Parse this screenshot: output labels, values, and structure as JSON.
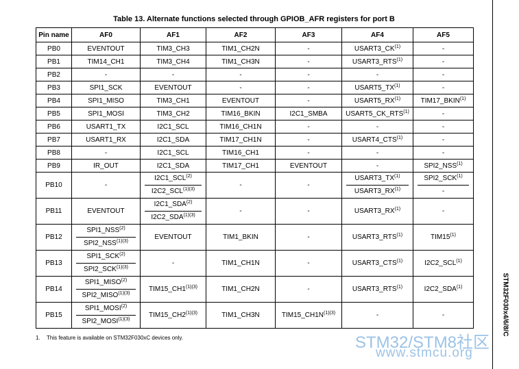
{
  "title": "Table 13. Alternate functions selected through GPIOB_AFR registers for port B",
  "table": {
    "header": [
      "Pin name",
      "AF0",
      "AF1",
      "AF2",
      "AF3",
      "AF4",
      "AF5"
    ],
    "rows": [
      [
        "PB0",
        "EVENTOUT",
        "TIM3_CH3",
        "TIM1_CH2N",
        "-",
        {
          "text": "USART3_CK",
          "sup": "(1)"
        },
        "-"
      ],
      [
        "PB1",
        "TIM14_CH1",
        "TIM3_CH4",
        "TIM1_CH3N",
        "-",
        {
          "text": "USART3_RTS",
          "sup": "(1)"
        },
        "-"
      ],
      [
        "PB2",
        "-",
        "-",
        "-",
        "-",
        "-",
        "-"
      ],
      [
        "PB3",
        "SPI1_SCK",
        "EVENTOUT",
        "-",
        "-",
        {
          "text": "USART5_TX",
          "sup": "(1)"
        },
        "-"
      ],
      [
        "PB4",
        "SPI1_MISO",
        "TIM3_CH1",
        "EVENTOUT",
        "-",
        {
          "text": "USART5_RX",
          "sup": "(1)"
        },
        {
          "text": "TIM17_BKIN",
          "sup": "(1)"
        }
      ],
      [
        "PB5",
        "SPI1_MOSI",
        "TIM3_CH2",
        "TIM16_BKIN",
        "I2C1_SMBA",
        {
          "text": "USART5_CK_RTS",
          "sup": "(1)"
        },
        "-"
      ],
      [
        "PB6",
        "USART1_TX",
        "I2C1_SCL",
        "TIM16_CH1N",
        "-",
        "-",
        "-"
      ],
      [
        "PB7",
        "USART1_RX",
        "I2C1_SDA",
        "TIM17_CH1N",
        "-",
        {
          "text": "USART4_CTS",
          "sup": "(1)"
        },
        "-"
      ],
      [
        "PB8",
        "-",
        "I2C1_SCL",
        "TIM16_CH1",
        "-",
        "-",
        "-"
      ],
      [
        "PB9",
        "IR_OUT",
        "I2C1_SDA",
        "TIM17_CH1",
        "EVENTOUT",
        "-",
        {
          "text": "SPI2_NSS",
          "sup": "(1)"
        }
      ],
      [
        "PB10",
        "-",
        [
          {
            "text": "I2C1_SCL",
            "sup": "(2)"
          },
          {
            "text": "I2C2_SCL",
            "sup": "(1)(3)"
          }
        ],
        "-",
        "-",
        [
          {
            "text": "USART3_TX",
            "sup": "(1)"
          },
          {
            "text": "USART3_RX",
            "sup": "(1)"
          }
        ],
        [
          {
            "text": "SPI2_SCK",
            "sup": "(1)"
          },
          "-"
        ]
      ],
      [
        "PB11",
        "EVENTOUT",
        [
          {
            "text": "I2C1_SDA",
            "sup": "(2)"
          },
          {
            "text": "I2C2_SDA",
            "sup": "(1)(3)"
          }
        ],
        "-",
        "-",
        {
          "text": "USART3_RX",
          "sup": "(1)"
        },
        "-"
      ],
      [
        "PB12",
        [
          {
            "text": "SPI1_NSS",
            "sup": "(2)"
          },
          {
            "text": "SPI2_NSS",
            "sup": "(1)(3)"
          }
        ],
        "EVENTOUT",
        "TIM1_BKIN",
        "-",
        {
          "text": "USART3_RTS",
          "sup": "(1)"
        },
        {
          "text": "TIM15",
          "sup": "(1)"
        }
      ],
      [
        "PB13",
        [
          {
            "text": "SPI1_SCK",
            "sup": "(2)"
          },
          {
            "text": "SPI2_SCK",
            "sup": "(1)(3)"
          }
        ],
        "-",
        "TIM1_CH1N",
        "-",
        {
          "text": "USART3_CTS",
          "sup": "(1)"
        },
        {
          "text": "I2C2_SCL",
          "sup": "(1)"
        }
      ],
      [
        "PB14",
        [
          {
            "text": "SPI1_MISO",
            "sup": "(2)"
          },
          {
            "text": "SPI2_MISO",
            "sup": "(1)(3)"
          }
        ],
        {
          "text": "TIM15_CH1",
          "sup": "(1)(3)"
        },
        "TIM1_CH2N",
        "-",
        {
          "text": "USART3_RTS",
          "sup": "(1)"
        },
        {
          "text": "I2C2_SDA",
          "sup": "(1)"
        }
      ],
      [
        "PB15",
        [
          {
            "text": "SPI1_MOSI",
            "sup": "(2)"
          },
          {
            "text": "SPI2_MOSI",
            "sup": "(1)(3)"
          }
        ],
        {
          "text": "TIM15_CH2",
          "sup": "(1)(3)"
        },
        "TIM1_CH3N",
        {
          "text": "TIM15_CH1N",
          "sup": "(1)(3)"
        },
        "-",
        "-"
      ]
    ]
  },
  "footnote": {
    "number": "1.",
    "text": "This feature is available on STM32F030xC devices only."
  },
  "side_label": "STM32F030x4/6/8/C",
  "watermark": {
    "brand": "STM32/STM8社区",
    "url": "www.stmcu.org"
  }
}
